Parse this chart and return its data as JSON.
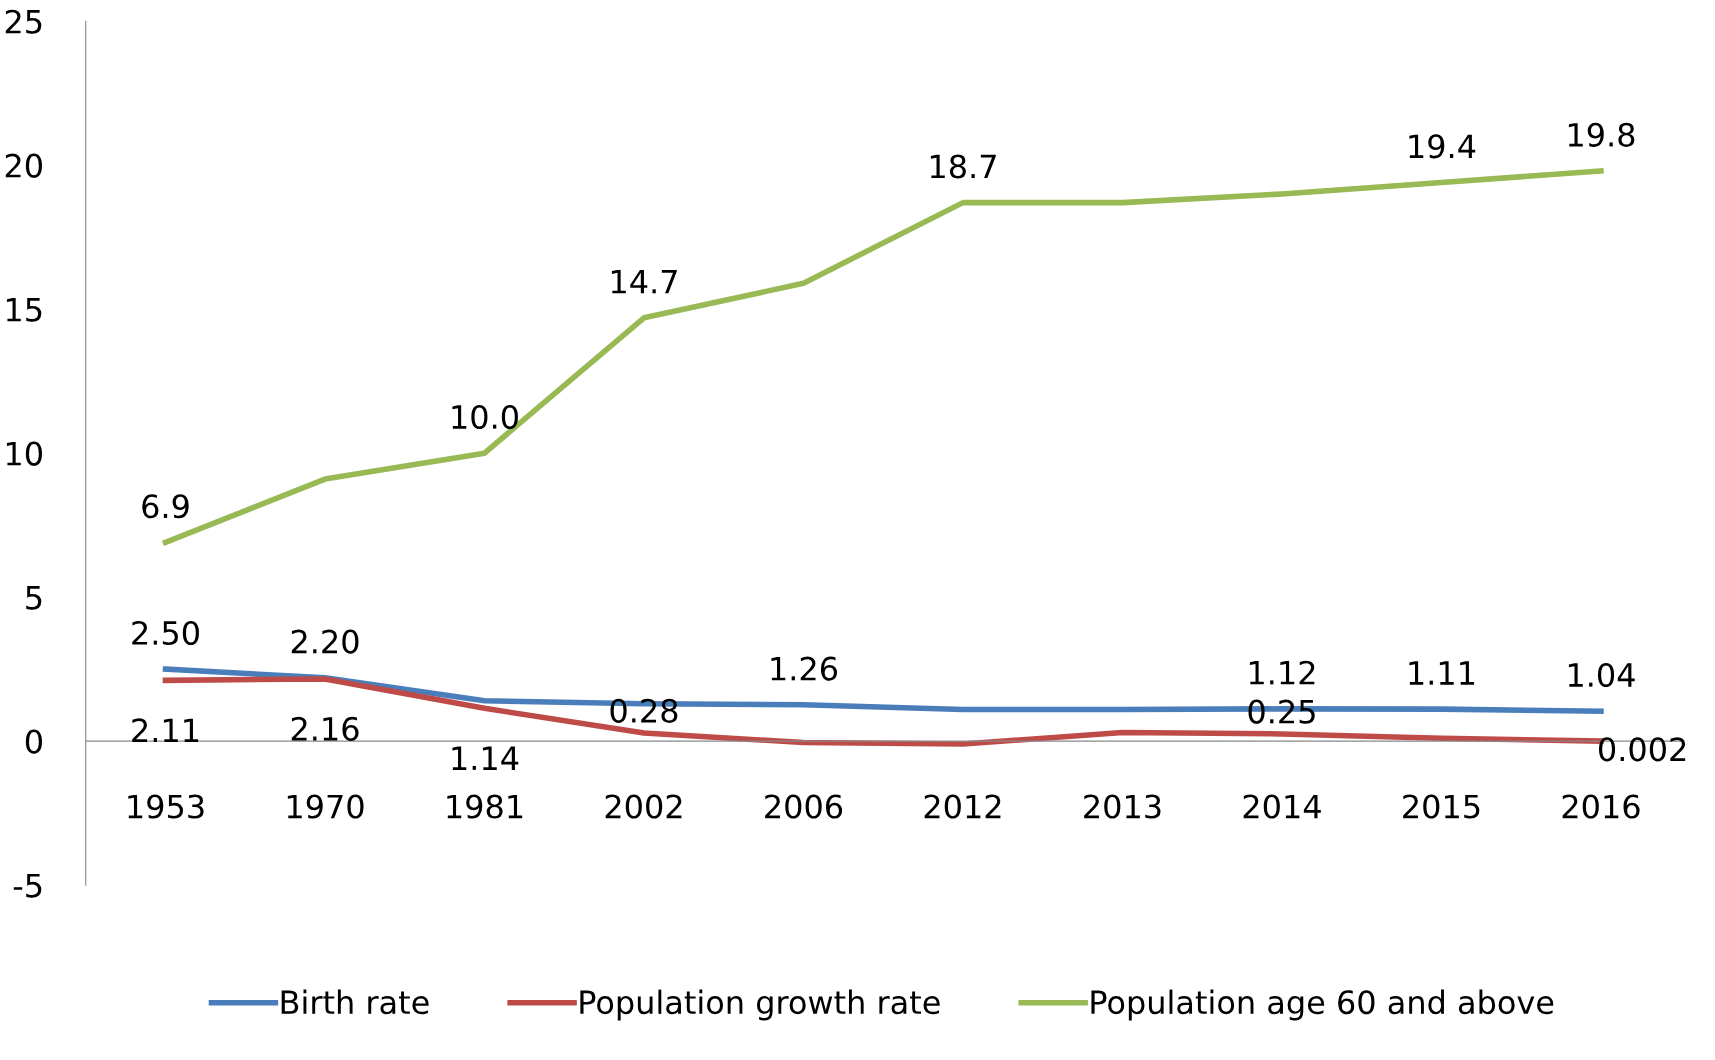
{
  "chart_data": {
    "type": "line",
    "categories": [
      "1953",
      "1970",
      "1981",
      "2002",
      "2006",
      "2012",
      "2013",
      "2014",
      "2015",
      "2016"
    ],
    "series": [
      {
        "name": "Birth rate",
        "color": "#4a7ebb",
        "values": [
          2.5,
          2.2,
          1.4,
          1.3,
          1.26,
          1.1,
          1.1,
          1.12,
          1.11,
          1.04
        ],
        "value_labels": [
          "2.50",
          "2.20",
          null,
          null,
          "1.26",
          null,
          null,
          "1.12",
          "1.11",
          "1.04"
        ]
      },
      {
        "name": "Population growth rate",
        "color": "#be4b48",
        "values": [
          2.11,
          2.16,
          1.14,
          0.28,
          -0.05,
          -0.1,
          0.3,
          0.25,
          0.1,
          0.002
        ],
        "value_labels": [
          "2.11",
          "2.16",
          "1.14",
          "0.28",
          null,
          null,
          null,
          "0.25",
          null,
          "0.002"
        ]
      },
      {
        "name": "Population age 60 and above",
        "color": "#98b954",
        "values": [
          6.9,
          9.1,
          10.0,
          14.7,
          15.9,
          18.7,
          18.7,
          19.0,
          19.4,
          19.8
        ],
        "value_labels": [
          "6.9",
          null,
          "10.0",
          "14.7",
          null,
          "18.7",
          null,
          null,
          "19.4",
          "19.8"
        ]
      }
    ],
    "ylim": [
      -5,
      25
    ],
    "yticks": [
      -5,
      0,
      5,
      10,
      15,
      20,
      25
    ],
    "grid": false,
    "legend": "bottom",
    "marker": "none",
    "line_style": "solid"
  }
}
